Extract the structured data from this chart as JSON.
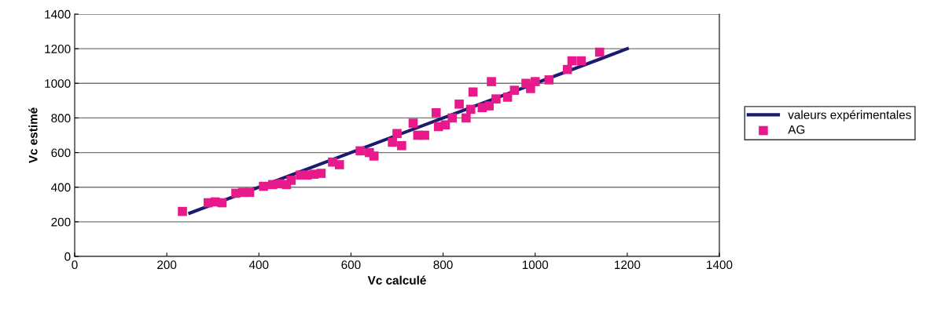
{
  "chart_data": {
    "type": "scatter",
    "xlabel": "Vc calculé",
    "ylabel": "Vc estimé",
    "xlim": [
      0,
      1400
    ],
    "xticks": [
      0,
      200,
      400,
      600,
      800,
      1000,
      1200,
      1400
    ],
    "ylim": [
      0,
      1400
    ],
    "yticks": [
      0,
      200,
      400,
      600,
      800,
      1000,
      1200,
      1400
    ],
    "grid": "y",
    "legend": "right",
    "series": [
      {
        "name": "valeurs expérimentales",
        "type": "line",
        "color": "#1a1a6e",
        "marker": "none",
        "x": [
          250,
          1200
        ],
        "values": [
          250,
          1200
        ]
      },
      {
        "name": "AG",
        "color": "#e8198b",
        "marker": "square",
        "x": [
          234,
          290,
          305,
          320,
          350,
          365,
          380,
          410,
          430,
          445,
          460,
          470,
          490,
          505,
          520,
          535,
          560,
          575,
          620,
          640,
          650,
          690,
          700,
          710,
          735,
          745,
          760,
          785,
          790,
          805,
          820,
          835,
          850,
          860,
          865,
          885,
          900,
          905,
          915,
          940,
          955,
          980,
          990,
          1000,
          1030,
          1070,
          1080,
          1100,
          1140
        ],
        "values": [
          260,
          310,
          315,
          310,
          365,
          370,
          370,
          405,
          415,
          420,
          415,
          440,
          470,
          470,
          475,
          480,
          545,
          530,
          610,
          600,
          580,
          660,
          710,
          640,
          770,
          700,
          700,
          830,
          750,
          760,
          800,
          880,
          800,
          850,
          950,
          860,
          870,
          1010,
          910,
          920,
          960,
          1000,
          970,
          1010,
          1020,
          1080,
          1130,
          1130,
          1180
        ]
      }
    ]
  }
}
